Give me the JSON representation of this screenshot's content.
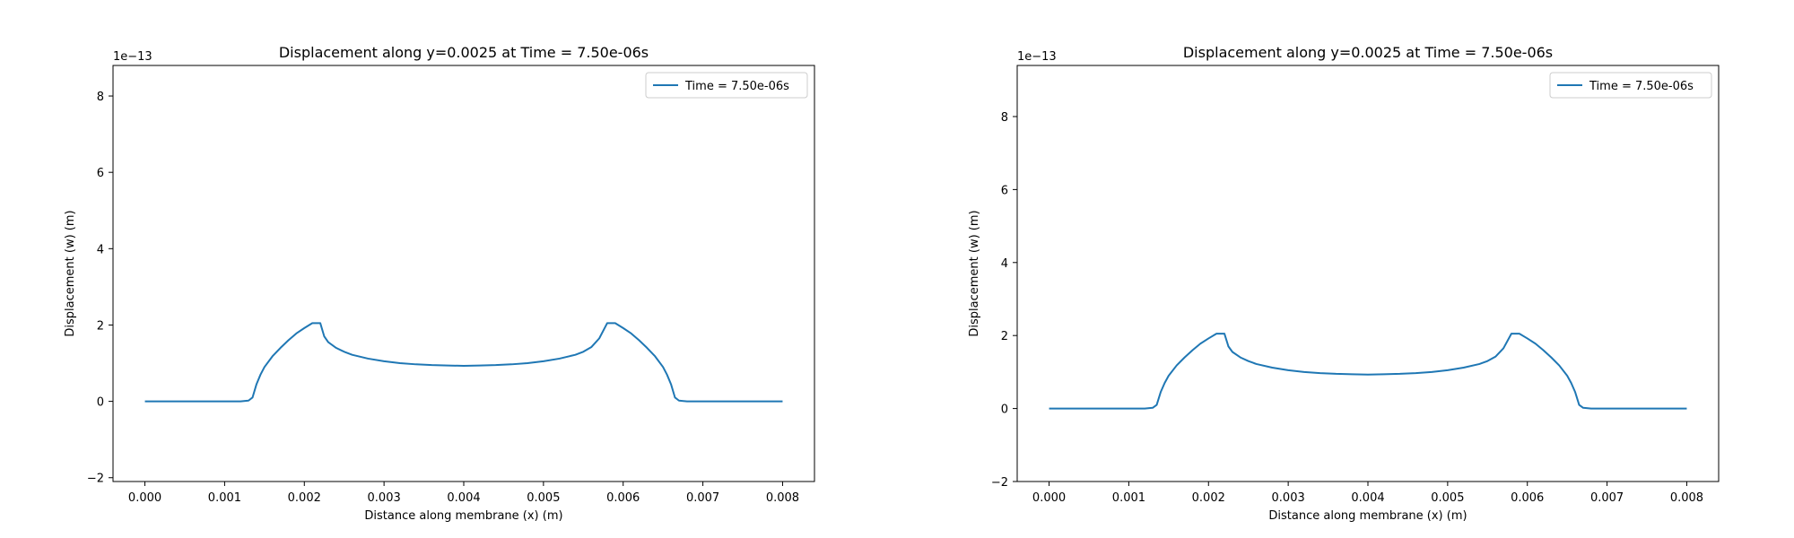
{
  "chart_data": [
    {
      "type": "line",
      "title": "Displacement along y=0.0025 at Time = 7.50e-06s",
      "xlabel": "Distance along membrane (x) (m)",
      "ylabel": "Displacement (w) (m)",
      "y_offset_text": "1e−13",
      "xlim": [
        -0.0004,
        0.0084
      ],
      "ylim": [
        -2.1,
        8.8
      ],
      "x_ticks": [
        0,
        0.001,
        0.002,
        0.003,
        0.004,
        0.005,
        0.006,
        0.007,
        0.008
      ],
      "x_tick_labels": [
        "0.000",
        "0.001",
        "0.002",
        "0.003",
        "0.004",
        "0.005",
        "0.006",
        "0.007",
        "0.008"
      ],
      "y_ticks": [
        -2,
        0,
        2,
        4,
        6,
        8
      ],
      "y_tick_labels": [
        "−2",
        "0",
        "2",
        "4",
        "6",
        "8"
      ],
      "grid": false,
      "legend_position": "top-right",
      "color": "#1f77b4",
      "series": [
        {
          "name": "Time = 7.50e-06s",
          "x": [
            0,
            0.0005,
            0.001,
            0.0012,
            0.0013,
            0.00135,
            0.0014,
            0.00145,
            0.0015,
            0.0016,
            0.0017,
            0.0018,
            0.0019,
            0.002,
            0.0021,
            0.0022,
            0.00225,
            0.0023,
            0.0024,
            0.0025,
            0.0026,
            0.0028,
            0.003,
            0.0032,
            0.0034,
            0.0036,
            0.0038,
            0.004,
            0.0042,
            0.0044,
            0.0046,
            0.0048,
            0.005,
            0.0052,
            0.0054,
            0.0055,
            0.0056,
            0.0057,
            0.0058,
            0.0059,
            0.006,
            0.0061,
            0.0062,
            0.0063,
            0.0064,
            0.0065,
            0.00655,
            0.0066,
            0.00665,
            0.0067,
            0.0068,
            0.0072,
            0.0076,
            0.008
          ],
          "y": [
            0,
            0,
            0,
            0,
            0.02,
            0.1,
            0.45,
            0.7,
            0.9,
            1.18,
            1.4,
            1.6,
            1.78,
            1.92,
            2.05,
            2.05,
            1.7,
            1.55,
            1.4,
            1.3,
            1.22,
            1.12,
            1.05,
            1.0,
            0.97,
            0.95,
            0.94,
            0.93,
            0.94,
            0.95,
            0.97,
            1.0,
            1.05,
            1.12,
            1.22,
            1.3,
            1.42,
            1.65,
            2.05,
            2.05,
            1.92,
            1.78,
            1.6,
            1.4,
            1.18,
            0.9,
            0.7,
            0.45,
            0.1,
            0.02,
            0,
            0,
            0,
            0
          ]
        }
      ]
    },
    {
      "type": "line",
      "title": "Displacement along y=0.0025 at Time = 7.50e-06s",
      "xlabel": "Distance along membrane (x) (m)",
      "ylabel": "Displacement (w) (m)",
      "y_offset_text": "1e−13",
      "xlim": [
        -0.0004,
        0.0084
      ],
      "ylim": [
        -2.0,
        9.4
      ],
      "x_ticks": [
        0,
        0.001,
        0.002,
        0.003,
        0.004,
        0.005,
        0.006,
        0.007,
        0.008
      ],
      "x_tick_labels": [
        "0.000",
        "0.001",
        "0.002",
        "0.003",
        "0.004",
        "0.005",
        "0.006",
        "0.007",
        "0.008"
      ],
      "y_ticks": [
        -2,
        0,
        2,
        4,
        6,
        8
      ],
      "y_tick_labels": [
        "−2",
        "0",
        "2",
        "4",
        "6",
        "8"
      ],
      "grid": false,
      "legend_position": "top-right",
      "color": "#1f77b4",
      "series": [
        {
          "name": "Time = 7.50e-06s",
          "x": [
            0,
            0.0005,
            0.001,
            0.0012,
            0.0013,
            0.00135,
            0.0014,
            0.00145,
            0.0015,
            0.0016,
            0.0017,
            0.0018,
            0.0019,
            0.002,
            0.0021,
            0.0022,
            0.00225,
            0.0023,
            0.0024,
            0.0025,
            0.0026,
            0.0028,
            0.003,
            0.0032,
            0.0034,
            0.0036,
            0.0038,
            0.004,
            0.0042,
            0.0044,
            0.0046,
            0.0048,
            0.005,
            0.0052,
            0.0054,
            0.0055,
            0.0056,
            0.0057,
            0.0058,
            0.0059,
            0.006,
            0.0061,
            0.0062,
            0.0063,
            0.0064,
            0.0065,
            0.00655,
            0.0066,
            0.00665,
            0.0067,
            0.0068,
            0.0072,
            0.0076,
            0.008
          ],
          "y": [
            0,
            0,
            0,
            0,
            0.02,
            0.1,
            0.45,
            0.7,
            0.9,
            1.18,
            1.4,
            1.6,
            1.78,
            1.92,
            2.05,
            2.05,
            1.7,
            1.55,
            1.4,
            1.3,
            1.22,
            1.12,
            1.05,
            1.0,
            0.97,
            0.95,
            0.94,
            0.93,
            0.94,
            0.95,
            0.97,
            1.0,
            1.05,
            1.12,
            1.22,
            1.3,
            1.42,
            1.65,
            2.05,
            2.05,
            1.92,
            1.78,
            1.6,
            1.4,
            1.18,
            0.9,
            0.7,
            0.45,
            0.1,
            0.02,
            0,
            0,
            0,
            0
          ]
        }
      ]
    }
  ]
}
